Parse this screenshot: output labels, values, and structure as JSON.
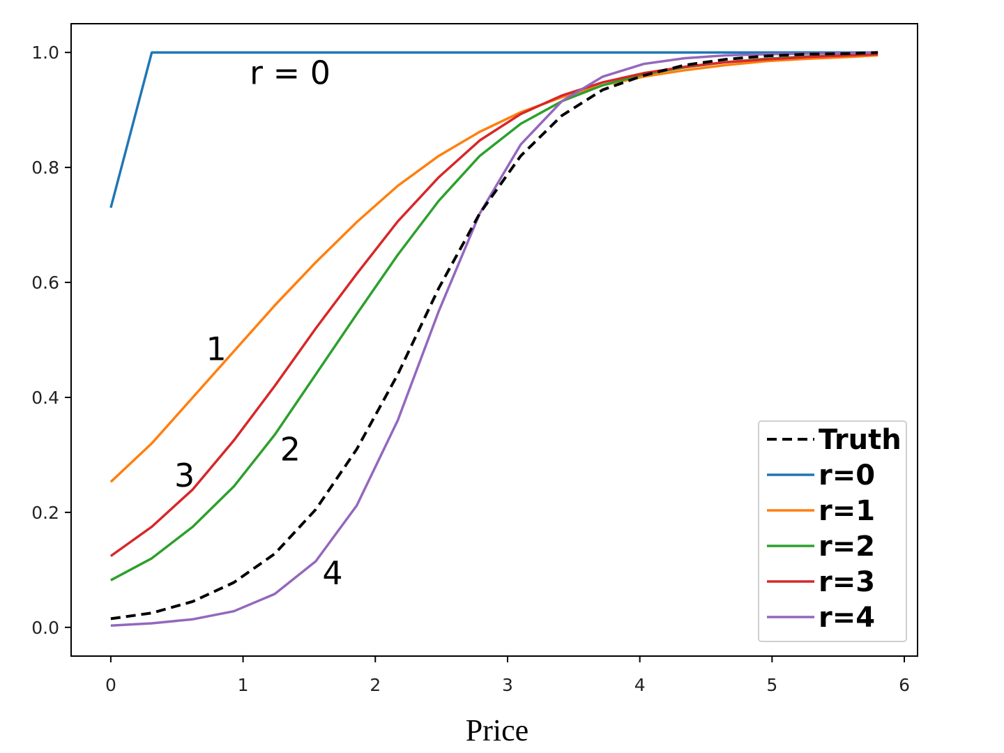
{
  "chart_data": {
    "type": "line",
    "xlabel": "Price",
    "ylabel": "",
    "xlim": [
      -0.3,
      6.1
    ],
    "ylim": [
      -0.05,
      1.05
    ],
    "xticks": [
      "0",
      "1",
      "2",
      "3",
      "4",
      "5",
      "6"
    ],
    "yticks": [
      "0.0",
      "0.2",
      "0.4",
      "0.6",
      "0.8",
      "1.0"
    ],
    "grid": false,
    "legend_position": "bottom-right",
    "x": [
      0,
      0.31,
      0.62,
      0.93,
      1.24,
      1.55,
      1.86,
      2.17,
      2.48,
      2.79,
      3.1,
      3.41,
      3.72,
      4.03,
      4.34,
      4.65,
      4.96,
      5.27,
      5.58,
      5.8
    ],
    "series": [
      {
        "name": "Truth",
        "color": "#000000",
        "dashed": true,
        "values": [
          0.015,
          0.025,
          0.045,
          0.078,
          0.128,
          0.205,
          0.31,
          0.44,
          0.59,
          0.72,
          0.82,
          0.89,
          0.935,
          0.96,
          0.978,
          0.988,
          0.994,
          0.997,
          0.998,
          1.0
        ]
      },
      {
        "name": "r=0",
        "color": "#1f77b4",
        "dashed": false,
        "values": [
          0.73,
          1.0,
          1.0,
          1.0,
          1.0,
          1.0,
          1.0,
          1.0,
          1.0,
          1.0,
          1.0,
          1.0,
          1.0,
          1.0,
          1.0,
          1.0,
          1.0,
          1.0,
          1.0,
          1.0
        ]
      },
      {
        "name": "r=1",
        "color": "#ff7f0e",
        "dashed": false,
        "values": [
          0.253,
          0.32,
          0.4,
          0.48,
          0.56,
          0.635,
          0.705,
          0.768,
          0.82,
          0.862,
          0.896,
          0.922,
          0.943,
          0.958,
          0.969,
          0.978,
          0.985,
          0.989,
          0.992,
          0.995
        ]
      },
      {
        "name": "r=2",
        "color": "#2ca02c",
        "dashed": false,
        "values": [
          0.082,
          0.12,
          0.175,
          0.245,
          0.335,
          0.44,
          0.545,
          0.648,
          0.742,
          0.82,
          0.876,
          0.915,
          0.943,
          0.962,
          0.974,
          0.983,
          0.989,
          0.993,
          0.995,
          0.997
        ]
      },
      {
        "name": "r=3",
        "color": "#d62728",
        "dashed": false,
        "values": [
          0.124,
          0.175,
          0.24,
          0.325,
          0.42,
          0.52,
          0.615,
          0.706,
          0.783,
          0.847,
          0.893,
          0.925,
          0.948,
          0.964,
          0.975,
          0.983,
          0.988,
          0.992,
          0.995,
          0.997
        ]
      },
      {
        "name": "r=4",
        "color": "#9467bd",
        "dashed": false,
        "values": [
          0.003,
          0.007,
          0.014,
          0.028,
          0.058,
          0.115,
          0.212,
          0.36,
          0.55,
          0.72,
          0.84,
          0.915,
          0.958,
          0.98,
          0.99,
          0.995,
          0.997,
          0.998,
          0.999,
          1.0
        ]
      }
    ],
    "annotations": [
      {
        "text": "r = 0",
        "x": 1.05,
        "y": 0.945
      },
      {
        "text": "1",
        "x": 0.72,
        "y": 0.465
      },
      {
        "text": "2",
        "x": 1.28,
        "y": 0.29
      },
      {
        "text": "3",
        "x": 0.48,
        "y": 0.245
      },
      {
        "text": "4",
        "x": 1.6,
        "y": 0.075
      }
    ]
  }
}
